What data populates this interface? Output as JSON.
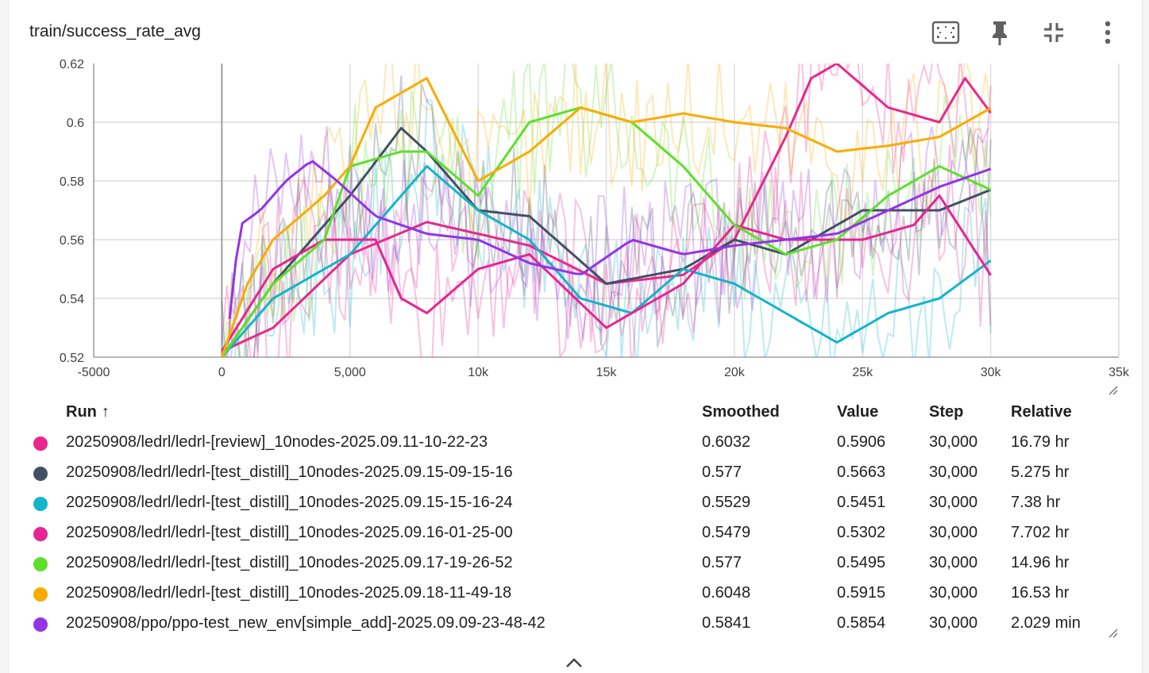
{
  "card": {
    "title": "train/success_rate_avg"
  },
  "toolbar": {
    "icons": [
      "fit-to-data-icon",
      "pin-icon",
      "collapse-icon",
      "more-vert-icon"
    ]
  },
  "chart_data": {
    "type": "line",
    "title": "train/success_rate_avg",
    "xlabel": "",
    "ylabel": "",
    "xlim": [
      -5000,
      35000
    ],
    "ylim": [
      0.52,
      0.62
    ],
    "x_ticks": [
      -5000,
      0,
      5000,
      10000,
      15000,
      20000,
      25000,
      30000,
      35000
    ],
    "x_tick_labels": [
      "-5000",
      "0",
      "5,000",
      "10k",
      "15k",
      "20k",
      "25k",
      "30k",
      "35k"
    ],
    "y_ticks": [
      0.52,
      0.54,
      0.56,
      0.58,
      0.6,
      0.62
    ],
    "y_tick_labels": [
      "0.52",
      "0.54",
      "0.56",
      "0.58",
      "0.6",
      "0.62"
    ],
    "grid": true,
    "legend_position": "bottom",
    "series": [
      {
        "name": "20250908/ledrl/ledrl-[review]_10nodes-2025.09.11-10-22-23",
        "color": "#e8288c",
        "x": [
          0,
          2000,
          5000,
          8000,
          10000,
          12000,
          15000,
          18000,
          20000,
          22000,
          23000,
          24000,
          26000,
          28000,
          29000,
          30000
        ],
        "y": [
          0.522,
          0.53,
          0.555,
          0.566,
          0.562,
          0.558,
          0.545,
          0.548,
          0.56,
          0.595,
          0.615,
          0.62,
          0.605,
          0.6,
          0.615,
          0.6032
        ]
      },
      {
        "name": "20250908/ledrl/ledrl-[test_distill]_10nodes-2025.09.15-09-15-16",
        "color": "#425066",
        "x": [
          0,
          2000,
          5000,
          7000,
          8000,
          10000,
          12000,
          15000,
          18000,
          20000,
          22000,
          25000,
          28000,
          30000
        ],
        "y": [
          0.52,
          0.545,
          0.575,
          0.598,
          0.59,
          0.57,
          0.568,
          0.545,
          0.55,
          0.56,
          0.555,
          0.57,
          0.57,
          0.577
        ]
      },
      {
        "name": "20250908/ledrl/ledrl-[test_distill]_10nodes-2025.09.15-15-16-24",
        "color": "#12b5cb",
        "x": [
          0,
          2000,
          5000,
          8000,
          10000,
          12000,
          14000,
          16000,
          18000,
          20000,
          22000,
          24000,
          26000,
          28000,
          30000
        ],
        "y": [
          0.52,
          0.54,
          0.555,
          0.585,
          0.57,
          0.56,
          0.54,
          0.535,
          0.55,
          0.545,
          0.535,
          0.525,
          0.535,
          0.54,
          0.5529
        ]
      },
      {
        "name": "20250908/ledrl/ledrl-[test_distill]_10nodes-2025.09.16-01-25-00",
        "color": "#e52592",
        "x": [
          0,
          2000,
          4000,
          6000,
          7000,
          8000,
          10000,
          12000,
          15000,
          18000,
          20000,
          22000,
          25000,
          27000,
          28000,
          30000
        ],
        "y": [
          0.522,
          0.55,
          0.56,
          0.56,
          0.54,
          0.535,
          0.55,
          0.555,
          0.53,
          0.545,
          0.565,
          0.56,
          0.56,
          0.565,
          0.575,
          0.5479
        ]
      },
      {
        "name": "20250908/ledrl/ledrl-[test_distill]_10nodes-2025.09.17-19-26-52",
        "color": "#5ce02b",
        "x": [
          0,
          2000,
          4000,
          5000,
          7000,
          8000,
          10000,
          12000,
          14000,
          16000,
          18000,
          20000,
          22000,
          24000,
          26000,
          28000,
          30000
        ],
        "y": [
          0.52,
          0.545,
          0.56,
          0.585,
          0.59,
          0.59,
          0.575,
          0.6,
          0.605,
          0.6,
          0.585,
          0.565,
          0.555,
          0.56,
          0.575,
          0.585,
          0.577
        ]
      },
      {
        "name": "20250908/ledrl/ledrl-[test_distill]_10nodes-2025.09.18-11-49-18",
        "color": "#f9ab00",
        "x": [
          0,
          1000,
          2000,
          4000,
          5000,
          6000,
          7000,
          8000,
          10000,
          12000,
          14000,
          16000,
          18000,
          20000,
          22000,
          24000,
          26000,
          28000,
          30000
        ],
        "y": [
          0.52,
          0.545,
          0.56,
          0.575,
          0.585,
          0.605,
          0.61,
          0.615,
          0.58,
          0.59,
          0.605,
          0.6,
          0.603,
          0.6,
          0.598,
          0.59,
          0.592,
          0.595,
          0.6048
        ]
      },
      {
        "name": "20250908/ppo/ppo-test_new_env[simple_add]-2025.09.09-23-48-42",
        "color": "#9334e6",
        "x": [
          300,
          700,
          1500,
          2500,
          3500,
          4500,
          6000,
          8000,
          10000,
          12000,
          14000,
          16000,
          18000,
          20000,
          22000,
          24000,
          26000,
          28000,
          30000
        ],
        "y": [
          0.533,
          0.565,
          0.57,
          0.58,
          0.587,
          0.58,
          0.568,
          0.562,
          0.56,
          0.552,
          0.548,
          0.56,
          0.555,
          0.558,
          0.56,
          0.562,
          0.57,
          0.578,
          0.5841
        ]
      }
    ]
  },
  "legend": {
    "headers": {
      "run": "Run",
      "sort_arrow": "↑",
      "smoothed": "Smoothed",
      "value": "Value",
      "step": "Step",
      "relative": "Relative"
    },
    "rows": [
      {
        "run": "20250908/ledrl/ledrl-[review]_10nodes-2025.09.11-10-22-23",
        "smoothed": "0.6032",
        "value": "0.5906",
        "step": "30,000",
        "relative": "16.79 hr",
        "color": "#e8288c"
      },
      {
        "run": "20250908/ledrl/ledrl-[test_distill]_10nodes-2025.09.15-09-15-16",
        "smoothed": "0.577",
        "value": "0.5663",
        "step": "30,000",
        "relative": "5.275 hr",
        "color": "#425066"
      },
      {
        "run": "20250908/ledrl/ledrl-[test_distill]_10nodes-2025.09.15-15-16-24",
        "smoothed": "0.5529",
        "value": "0.5451",
        "step": "30,000",
        "relative": "7.38 hr",
        "color": "#12b5cb"
      },
      {
        "run": "20250908/ledrl/ledrl-[test_distill]_10nodes-2025.09.16-01-25-00",
        "smoothed": "0.5479",
        "value": "0.5302",
        "step": "30,000",
        "relative": "7.702 hr",
        "color": "#e52592"
      },
      {
        "run": "20250908/ledrl/ledrl-[test_distill]_10nodes-2025.09.17-19-26-52",
        "smoothed": "0.577",
        "value": "0.5495",
        "step": "30,000",
        "relative": "14.96 hr",
        "color": "#5ce02b"
      },
      {
        "run": "20250908/ledrl/ledrl-[test_distill]_10nodes-2025.09.18-11-49-18",
        "smoothed": "0.6048",
        "value": "0.5915",
        "step": "30,000",
        "relative": "16.53 hr",
        "color": "#f9ab00"
      },
      {
        "run": "20250908/ppo/ppo-test_new_env[simple_add]-2025.09.09-23-48-42",
        "smoothed": "0.5841",
        "value": "0.5854",
        "step": "30,000",
        "relative": "2.029 min",
        "color": "#9334e6"
      }
    ]
  }
}
